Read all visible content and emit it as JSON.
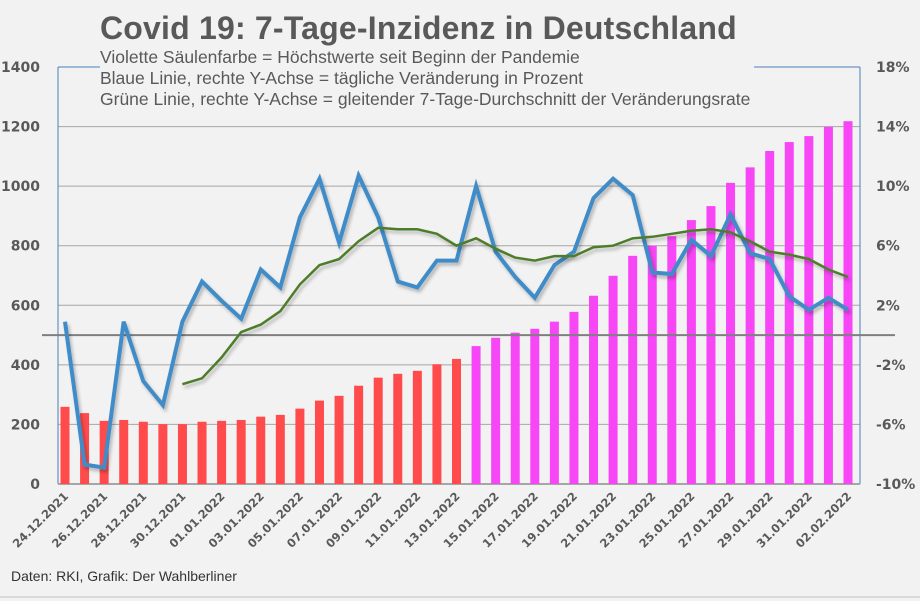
{
  "chart_data": {
    "type": "bar",
    "title": "Covid 19: 7-Tage-Inzidenz in Deutschland",
    "subtitles": [
      "Violette Säulenfarbe = Höchstwerte seit Beginn der Pandemie",
      "Blaue Linie, rechte Y-Achse = tägliche Veränderung in Prozent",
      "Grüne Linie, rechte Y-Achse = gleitender 7-Tage-Durchschnitt der Veränderungsrate"
    ],
    "source": "Daten: RKI, Grafik: Der Wahlberliner",
    "categories": [
      "24.12.2021",
      "25.12.2021",
      "26.12.2021",
      "27.12.2021",
      "28.12.2021",
      "29.12.2021",
      "30.12.2021",
      "31.12.2021",
      "01.01.2022",
      "02.01.2022",
      "03.01.2022",
      "04.01.2022",
      "05.01.2022",
      "06.01.2022",
      "07.01.2022",
      "08.01.2022",
      "09.01.2022",
      "10.01.2022",
      "11.01.2022",
      "12.01.2022",
      "13.01.2022",
      "14.01.2022",
      "15.01.2022",
      "16.01.2022",
      "17.01.2022",
      "18.01.2022",
      "19.01.2022",
      "20.01.2022",
      "21.01.2022",
      "22.01.2022",
      "23.01.2022",
      "24.01.2022",
      "25.01.2022",
      "26.01.2022",
      "27.01.2022",
      "28.01.2022",
      "29.01.2022",
      "30.01.2022",
      "31.01.2022",
      "01.02.2022",
      "02.02.2022"
    ],
    "xtick_labels_shown_every": 2,
    "left_axis": {
      "label": "",
      "range": [
        0,
        1400
      ],
      "ticks": [
        0,
        200,
        400,
        600,
        800,
        1000,
        1200,
        1400
      ]
    },
    "right_axis": {
      "label": "",
      "range": [
        -10,
        18
      ],
      "unit": "%",
      "ticks": [
        -10,
        -6,
        -2,
        2,
        6,
        10,
        14,
        18
      ]
    },
    "grid": true,
    "zero_line_right_axis": 0,
    "series": [
      {
        "name": "7-Tage-Inzidenz",
        "type": "bar",
        "axis": "left",
        "values": [
          259,
          238,
          212,
          215,
          209,
          201,
          201,
          209,
          212,
          215,
          226,
          232,
          253,
          280,
          296,
          330,
          357,
          370,
          380,
          402,
          420,
          463,
          491,
          508,
          521,
          545,
          578,
          632,
          699,
          766,
          800,
          832,
          886,
          933,
          1011,
          1063,
          1118,
          1148,
          1168,
          1199,
          1218
        ],
        "record_high_from_index": 21,
        "colors": {
          "normal": "#ff4b4b",
          "record": "#f646f6"
        }
      },
      {
        "name": "tägliche Veränderung in Prozent",
        "type": "line",
        "axis": "right",
        "color": "#3f8cc8",
        "values": [
          0.9,
          -8.7,
          -8.9,
          0.9,
          -3.1,
          -4.7,
          0.9,
          3.6,
          2.3,
          1.1,
          4.4,
          3.2,
          7.9,
          10.5,
          6.2,
          10.7,
          7.9,
          3.6,
          3.2,
          5.0,
          5.0,
          10.0,
          5.6,
          3.9,
          2.5,
          4.7,
          5.6,
          9.2,
          10.5,
          9.4,
          4.2,
          4.1,
          6.4,
          5.3,
          8.1,
          5.5,
          5.1,
          2.6,
          1.7,
          2.5,
          1.7
        ]
      },
      {
        "name": "gleitender 7-Tage-Durchschnitt der Veränderungsrate",
        "type": "line",
        "axis": "right",
        "color": "#4e7d2a",
        "values": [
          null,
          null,
          null,
          null,
          null,
          null,
          -3.3,
          -2.9,
          -1.5,
          0.2,
          0.7,
          1.6,
          3.4,
          4.7,
          5.1,
          6.3,
          7.2,
          7.1,
          7.1,
          6.8,
          6.0,
          6.5,
          5.8,
          5.2,
          5.0,
          5.3,
          5.3,
          5.9,
          6.0,
          6.5,
          6.6,
          6.8,
          7.0,
          7.1,
          6.9,
          6.3,
          5.6,
          5.4,
          5.1,
          4.4,
          3.9
        ]
      }
    ]
  }
}
